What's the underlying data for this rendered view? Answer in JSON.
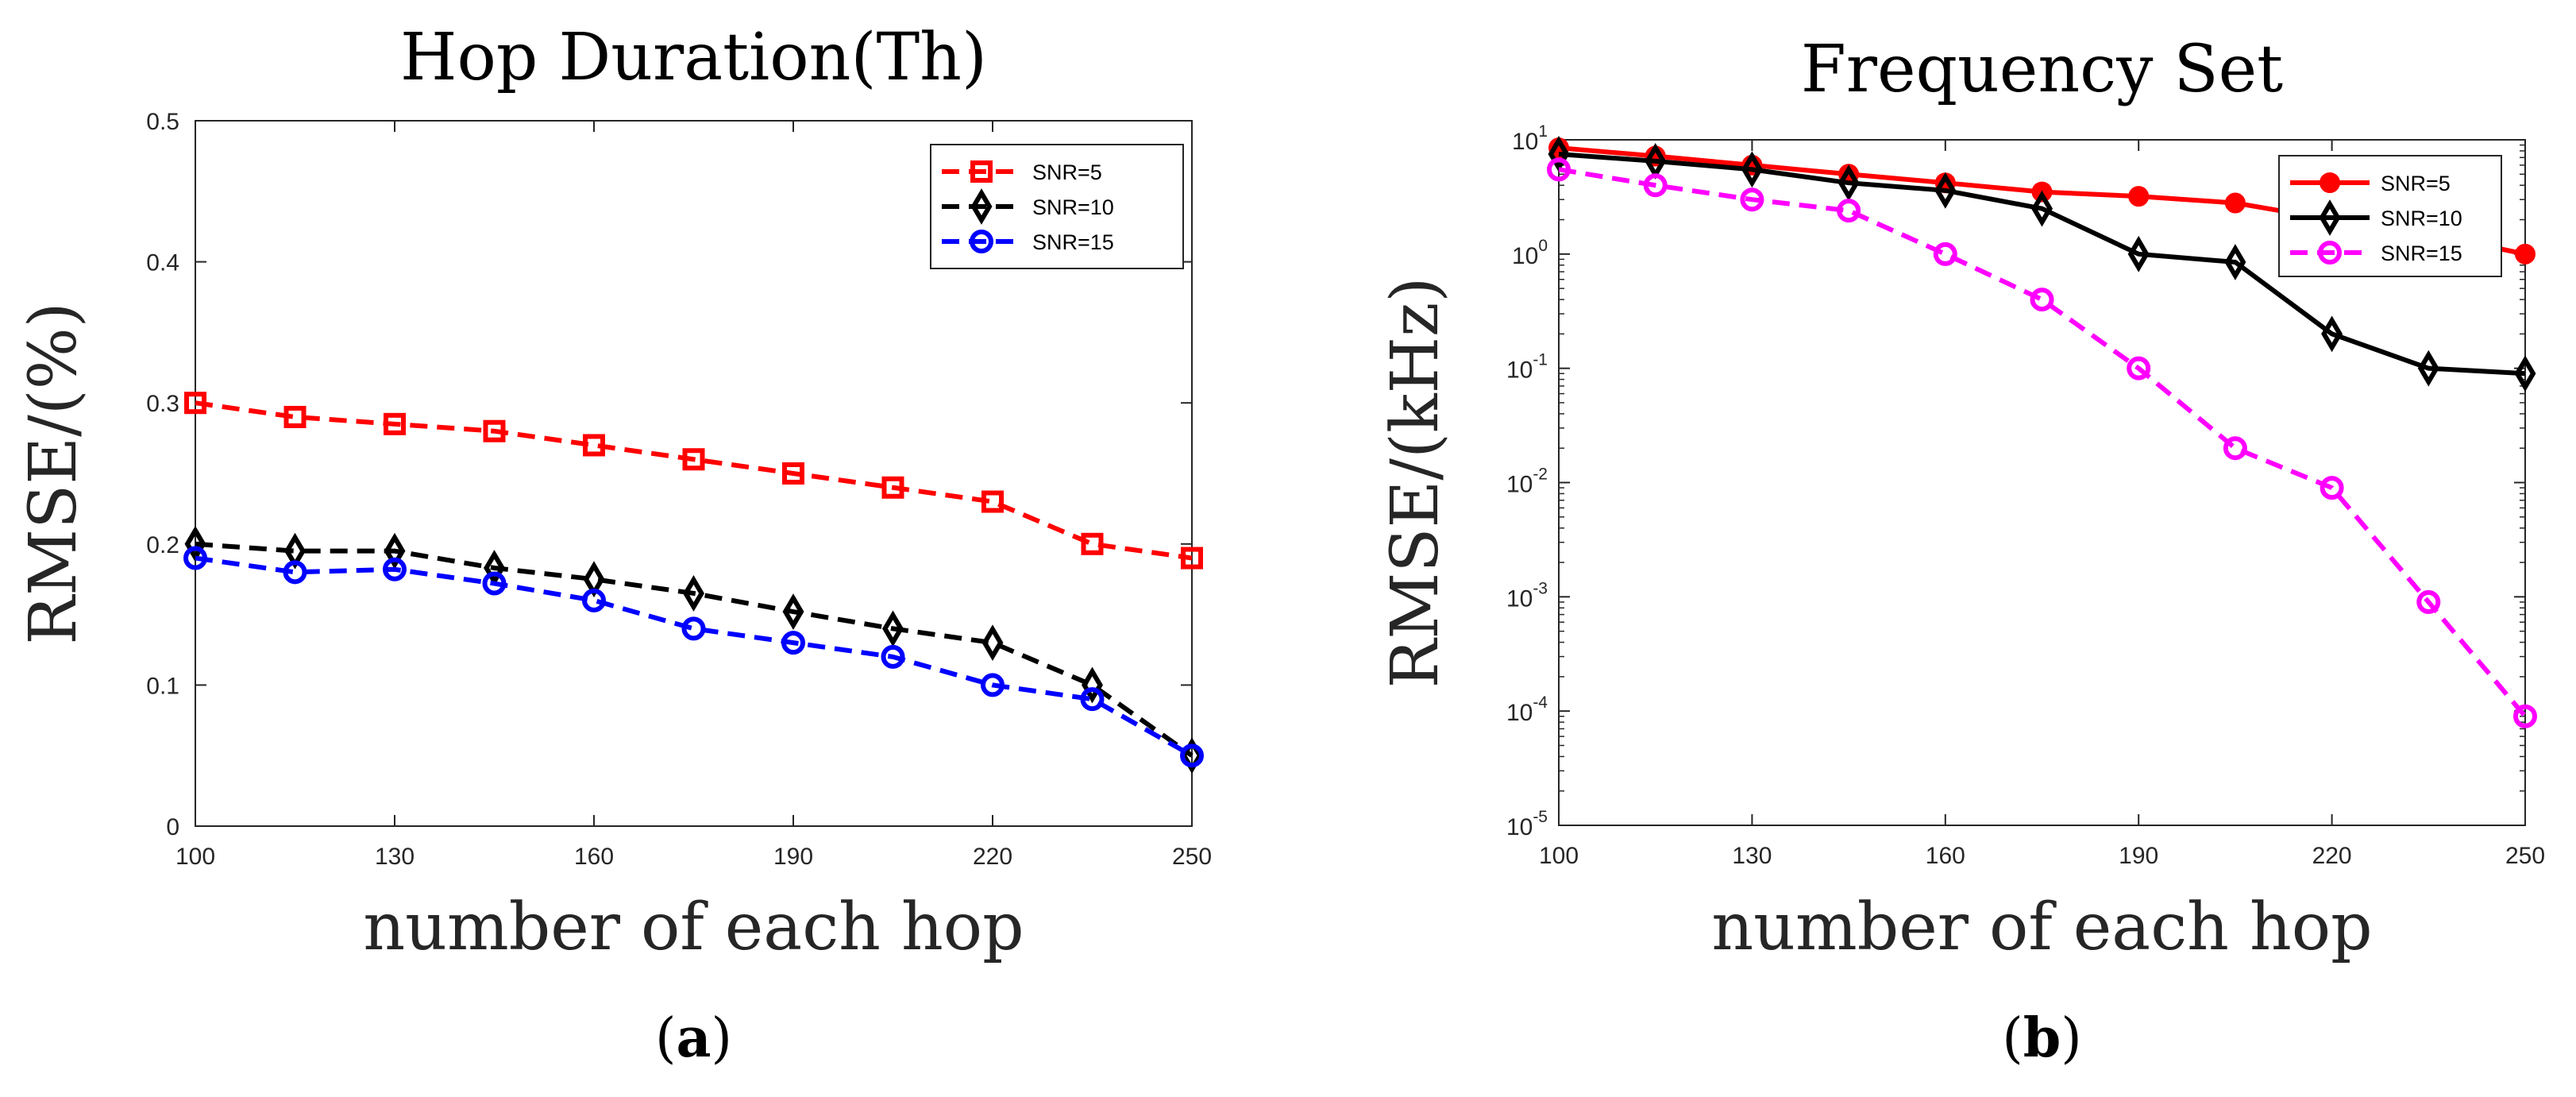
{
  "chart_data": [
    {
      "type": "line",
      "title": "Hop Duration(Th)",
      "xlabel": "number of each hop",
      "ylabel": "RMSE/(%)",
      "panel_label_prefix": "(",
      "panel_label_letter": "a",
      "panel_label_suffix": ")",
      "xlim": [
        100,
        250
      ],
      "ylim": [
        0,
        0.5
      ],
      "x_ticks": [
        100,
        130,
        160,
        190,
        220,
        250
      ],
      "y_ticks": [
        0,
        0.1,
        0.2,
        0.3,
        0.4,
        0.5
      ],
      "y_scale": "linear",
      "legend_position": "top-right",
      "grid": false,
      "x": [
        100,
        115,
        130,
        145,
        160,
        175,
        190,
        205,
        220,
        235,
        250
      ],
      "series": [
        {
          "name": "SNR=5",
          "color": "#ff0000",
          "marker": "square",
          "line": "dashed",
          "values": [
            0.3,
            0.29,
            0.285,
            0.28,
            0.27,
            0.26,
            0.25,
            0.24,
            0.23,
            0.2,
            0.19
          ]
        },
        {
          "name": "SNR=10",
          "color": "#000000",
          "marker": "diamond",
          "line": "dashed",
          "values": [
            0.2,
            0.195,
            0.195,
            0.183,
            0.175,
            0.165,
            0.152,
            0.14,
            0.13,
            0.1,
            0.05
          ]
        },
        {
          "name": "SNR=15",
          "color": "#0000ff",
          "marker": "circle",
          "line": "dashed",
          "values": [
            0.19,
            0.18,
            0.182,
            0.172,
            0.16,
            0.14,
            0.13,
            0.12,
            0.1,
            0.09,
            0.05
          ]
        }
      ]
    },
    {
      "type": "line",
      "title": "Frequency Set",
      "xlabel": "number of each hop",
      "ylabel": "RMSE/(kHz)",
      "panel_label_prefix": "(",
      "panel_label_letter": "b",
      "panel_label_suffix": ")",
      "xlim": [
        100,
        250
      ],
      "ylim": [
        1e-05,
        10
      ],
      "x_ticks": [
        100,
        130,
        160,
        190,
        220,
        250
      ],
      "y_ticks": [
        -5,
        -4,
        -3,
        -2,
        -1,
        0,
        1
      ],
      "y_scale": "log",
      "legend_position": "top-right",
      "grid": false,
      "x": [
        100,
        115,
        130,
        145,
        160,
        175,
        190,
        205,
        220,
        235,
        250
      ],
      "series": [
        {
          "name": "SNR=5",
          "color": "#ff0000",
          "marker": "filled-circle",
          "line": "solid",
          "values": [
            8.5,
            7.2,
            6.0,
            5.0,
            4.2,
            3.5,
            3.2,
            2.8,
            2.0,
            1.5,
            1.0
          ]
        },
        {
          "name": "SNR=10",
          "color": "#000000",
          "marker": "diamond",
          "line": "solid",
          "values": [
            7.5,
            6.5,
            5.5,
            4.2,
            3.6,
            2.5,
            1.0,
            0.85,
            0.2,
            0.1,
            0.09
          ]
        },
        {
          "name": "SNR=15",
          "color": "#ff00ff",
          "marker": "circle",
          "line": "dashed",
          "values": [
            5.5,
            4.0,
            3.0,
            2.4,
            1.0,
            0.4,
            0.1,
            0.02,
            0.009,
            0.0009,
            9e-05
          ]
        }
      ]
    }
  ]
}
